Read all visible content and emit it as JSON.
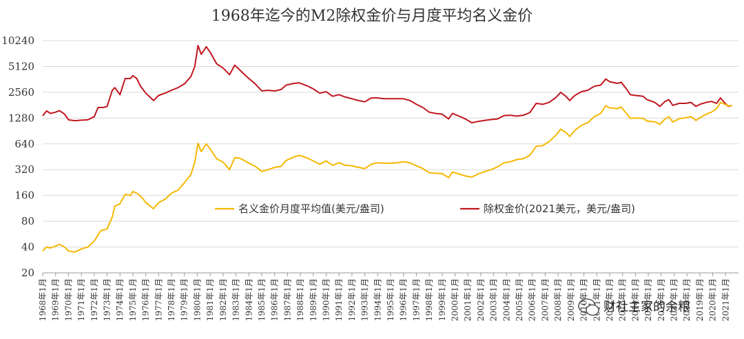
{
  "chart_data": {
    "type": "line",
    "title": "1968年迄今的M2除权金价与月度平均名义金价",
    "y_scale": "log2",
    "ylim": [
      20,
      10240
    ],
    "y_ticks": [
      20,
      40,
      80,
      160,
      320,
      640,
      1280,
      2560,
      5120,
      10240
    ],
    "y_tick_labels": [
      "20",
      "40",
      "80",
      "160",
      "320",
      "640",
      "1280",
      "2560",
      "5120",
      "10240"
    ],
    "x_ticks": [
      "1968年1月",
      "1969年1月",
      "1970年1月",
      "1971年1月",
      "1972年1月",
      "1973年1月",
      "1974年1月",
      "1975年1月",
      "1976年1月",
      "1977年1月",
      "1978年1月",
      "1979年1月",
      "1980年1月",
      "1981年1月",
      "1982年1月",
      "1983年1月",
      "1984年1月",
      "1985年1月",
      "1986年1月",
      "1987年1月",
      "1988年1月",
      "1989年1月",
      "1990年1月",
      "1991年1月",
      "1992年1月",
      "1993年1月",
      "1994年1月",
      "1995年1月",
      "1996年1月",
      "1997年1月",
      "1998年1月",
      "1999年1月",
      "2000年1月",
      "2001年1月",
      "2002年1月",
      "2003年1月",
      "2004年1月",
      "2005年1月",
      "2006年1月",
      "2007年1月",
      "2008年1月",
      "2009年1月",
      "2010年1月",
      "2011年1月",
      "2012年1月",
      "2013年1月",
      "2014年1月",
      "2015年1月",
      "2016年1月",
      "2017年1月",
      "2018年1月",
      "2019年1月",
      "2020年1月",
      "2021年1月"
    ],
    "grid": true,
    "legend_position": "center",
    "series": [
      {
        "name": "名义金价月度平均值(美元/盎司)",
        "color": "#f5b800",
        "points": [
          [
            1968.0,
            36
          ],
          [
            1968.3,
            40
          ],
          [
            1968.6,
            39
          ],
          [
            1969.0,
            41
          ],
          [
            1969.3,
            43
          ],
          [
            1969.7,
            40
          ],
          [
            1970.0,
            36
          ],
          [
            1970.5,
            35
          ],
          [
            1971.0,
            38
          ],
          [
            1971.5,
            40
          ],
          [
            1972.0,
            47
          ],
          [
            1972.5,
            62
          ],
          [
            1973.0,
            65
          ],
          [
            1973.4,
            90
          ],
          [
            1973.6,
            120
          ],
          [
            1974.0,
            128
          ],
          [
            1974.4,
            165
          ],
          [
            1974.8,
            160
          ],
          [
            1975.0,
            178
          ],
          [
            1975.4,
            167
          ],
          [
            1975.8,
            145
          ],
          [
            1976.0,
            132
          ],
          [
            1976.6,
            112
          ],
          [
            1977.0,
            132
          ],
          [
            1977.5,
            145
          ],
          [
            1978.0,
            170
          ],
          [
            1978.5,
            185
          ],
          [
            1979.0,
            225
          ],
          [
            1979.5,
            280
          ],
          [
            1979.8,
            390
          ],
          [
            1980.05,
            650
          ],
          [
            1980.3,
            520
          ],
          [
            1980.7,
            640
          ],
          [
            1981.0,
            560
          ],
          [
            1981.5,
            430
          ],
          [
            1982.0,
            390
          ],
          [
            1982.5,
            320
          ],
          [
            1982.9,
            440
          ],
          [
            1983.2,
            440
          ],
          [
            1983.5,
            420
          ],
          [
            1984.0,
            380
          ],
          [
            1984.5,
            350
          ],
          [
            1985.0,
            305
          ],
          [
            1985.5,
            320
          ],
          [
            1986.0,
            340
          ],
          [
            1986.5,
            350
          ],
          [
            1986.9,
            410
          ],
          [
            1987.5,
            450
          ],
          [
            1987.9,
            470
          ],
          [
            1988.5,
            440
          ],
          [
            1989.0,
            405
          ],
          [
            1989.5,
            370
          ],
          [
            1990.0,
            405
          ],
          [
            1990.5,
            360
          ],
          [
            1991.0,
            385
          ],
          [
            1991.5,
            360
          ],
          [
            1992.0,
            355
          ],
          [
            1992.5,
            340
          ],
          [
            1993.0,
            330
          ],
          [
            1993.5,
            370
          ],
          [
            1994.0,
            385
          ],
          [
            1994.5,
            380
          ],
          [
            1995.0,
            380
          ],
          [
            1995.5,
            385
          ],
          [
            1996.0,
            395
          ],
          [
            1996.5,
            385
          ],
          [
            1997.0,
            355
          ],
          [
            1997.5,
            330
          ],
          [
            1998.0,
            295
          ],
          [
            1998.5,
            290
          ],
          [
            1999.0,
            288
          ],
          [
            1999.5,
            258
          ],
          [
            1999.8,
            300
          ],
          [
            2000.3,
            285
          ],
          [
            2000.8,
            270
          ],
          [
            2001.3,
            262
          ],
          [
            2001.8,
            285
          ],
          [
            2002.3,
            305
          ],
          [
            2002.8,
            320
          ],
          [
            2003.3,
            345
          ],
          [
            2003.8,
            385
          ],
          [
            2004.3,
            395
          ],
          [
            2004.8,
            420
          ],
          [
            2005.3,
            430
          ],
          [
            2005.8,
            470
          ],
          [
            2006.3,
            600
          ],
          [
            2006.8,
            610
          ],
          [
            2007.3,
            680
          ],
          [
            2007.8,
            800
          ],
          [
            2008.2,
            950
          ],
          [
            2008.6,
            870
          ],
          [
            2008.9,
            780
          ],
          [
            2009.3,
            920
          ],
          [
            2009.8,
            1050
          ],
          [
            2010.3,
            1130
          ],
          [
            2010.8,
            1330
          ],
          [
            2011.3,
            1450
          ],
          [
            2011.7,
            1780
          ],
          [
            2012.0,
            1680
          ],
          [
            2012.6,
            1650
          ],
          [
            2012.9,
            1720
          ],
          [
            2013.3,
            1450
          ],
          [
            2013.6,
            1270
          ],
          [
            2014.0,
            1280
          ],
          [
            2014.6,
            1270
          ],
          [
            2014.9,
            1180
          ],
          [
            2015.5,
            1160
          ],
          [
            2015.9,
            1080
          ],
          [
            2016.3,
            1250
          ],
          [
            2016.6,
            1330
          ],
          [
            2016.9,
            1150
          ],
          [
            2017.4,
            1260
          ],
          [
            2017.9,
            1290
          ],
          [
            2018.3,
            1330
          ],
          [
            2018.7,
            1200
          ],
          [
            2019.0,
            1290
          ],
          [
            2019.5,
            1420
          ],
          [
            2019.9,
            1500
          ],
          [
            2020.3,
            1650
          ],
          [
            2020.6,
            1950
          ],
          [
            2020.9,
            1870
          ],
          [
            2021.2,
            1770
          ],
          [
            2021.5,
            1800
          ]
        ]
      },
      {
        "name": "除权金价(2021美元，美元/盎司)",
        "color": "#c0161f",
        "points": [
          [
            1968.0,
            1360
          ],
          [
            1968.3,
            1550
          ],
          [
            1968.6,
            1450
          ],
          [
            1969.0,
            1500
          ],
          [
            1969.3,
            1560
          ],
          [
            1969.7,
            1420
          ],
          [
            1970.0,
            1220
          ],
          [
            1970.5,
            1190
          ],
          [
            1971.0,
            1210
          ],
          [
            1971.5,
            1220
          ],
          [
            1972.0,
            1330
          ],
          [
            1972.3,
            1700
          ],
          [
            1972.7,
            1700
          ],
          [
            1973.0,
            1750
          ],
          [
            1973.4,
            2700
          ],
          [
            1973.6,
            2900
          ],
          [
            1974.0,
            2400
          ],
          [
            1974.4,
            3700
          ],
          [
            1974.8,
            3700
          ],
          [
            1975.0,
            4000
          ],
          [
            1975.3,
            3700
          ],
          [
            1975.6,
            3000
          ],
          [
            1976.0,
            2500
          ],
          [
            1976.6,
            2050
          ],
          [
            1977.0,
            2350
          ],
          [
            1977.5,
            2500
          ],
          [
            1978.0,
            2700
          ],
          [
            1978.5,
            2900
          ],
          [
            1979.0,
            3200
          ],
          [
            1979.5,
            3900
          ],
          [
            1979.8,
            5100
          ],
          [
            1980.05,
            9000
          ],
          [
            1980.3,
            7100
          ],
          [
            1980.7,
            8700
          ],
          [
            1981.0,
            7500
          ],
          [
            1981.5,
            5500
          ],
          [
            1982.0,
            4900
          ],
          [
            1982.5,
            4100
          ],
          [
            1982.9,
            5300
          ],
          [
            1983.2,
            4800
          ],
          [
            1983.6,
            4200
          ],
          [
            1984.0,
            3700
          ],
          [
            1984.5,
            3200
          ],
          [
            1985.0,
            2650
          ],
          [
            1985.5,
            2700
          ],
          [
            1986.0,
            2650
          ],
          [
            1986.5,
            2750
          ],
          [
            1986.9,
            3100
          ],
          [
            1987.5,
            3250
          ],
          [
            1987.9,
            3300
          ],
          [
            1988.5,
            3050
          ],
          [
            1989.0,
            2800
          ],
          [
            1989.5,
            2500
          ],
          [
            1990.0,
            2600
          ],
          [
            1990.5,
            2300
          ],
          [
            1991.0,
            2400
          ],
          [
            1991.5,
            2250
          ],
          [
            1992.0,
            2150
          ],
          [
            1992.5,
            2050
          ],
          [
            1993.0,
            1980
          ],
          [
            1993.5,
            2200
          ],
          [
            1994.0,
            2200
          ],
          [
            1994.5,
            2150
          ],
          [
            1995.0,
            2150
          ],
          [
            1995.5,
            2150
          ],
          [
            1996.0,
            2150
          ],
          [
            1996.5,
            2050
          ],
          [
            1997.0,
            1850
          ],
          [
            1997.5,
            1700
          ],
          [
            1998.0,
            1500
          ],
          [
            1998.5,
            1450
          ],
          [
            1999.0,
            1420
          ],
          [
            1999.5,
            1250
          ],
          [
            1999.8,
            1450
          ],
          [
            2000.3,
            1350
          ],
          [
            2000.8,
            1250
          ],
          [
            2001.3,
            1130
          ],
          [
            2001.8,
            1170
          ],
          [
            2002.3,
            1200
          ],
          [
            2002.8,
            1230
          ],
          [
            2003.3,
            1250
          ],
          [
            2003.8,
            1370
          ],
          [
            2004.3,
            1380
          ],
          [
            2004.8,
            1350
          ],
          [
            2005.3,
            1380
          ],
          [
            2005.8,
            1480
          ],
          [
            2006.3,
            1900
          ],
          [
            2006.8,
            1850
          ],
          [
            2007.3,
            1950
          ],
          [
            2007.8,
            2200
          ],
          [
            2008.2,
            2550
          ],
          [
            2008.6,
            2300
          ],
          [
            2008.9,
            2050
          ],
          [
            2009.3,
            2350
          ],
          [
            2009.8,
            2600
          ],
          [
            2010.3,
            2700
          ],
          [
            2010.8,
            3000
          ],
          [
            2011.3,
            3100
          ],
          [
            2011.7,
            3650
          ],
          [
            2012.0,
            3400
          ],
          [
            2012.6,
            3250
          ],
          [
            2012.9,
            3350
          ],
          [
            2013.3,
            2800
          ],
          [
            2013.6,
            2400
          ],
          [
            2014.0,
            2350
          ],
          [
            2014.6,
            2300
          ],
          [
            2014.9,
            2100
          ],
          [
            2015.5,
            1950
          ],
          [
            2015.9,
            1750
          ],
          [
            2016.3,
            2000
          ],
          [
            2016.6,
            2100
          ],
          [
            2016.9,
            1800
          ],
          [
            2017.4,
            1900
          ],
          [
            2017.9,
            1900
          ],
          [
            2018.3,
            1950
          ],
          [
            2018.7,
            1750
          ],
          [
            2019.0,
            1850
          ],
          [
            2019.5,
            1950
          ],
          [
            2019.9,
            2000
          ],
          [
            2020.3,
            1900
          ],
          [
            2020.6,
            2200
          ],
          [
            2020.9,
            1950
          ],
          [
            2021.2,
            1750
          ],
          [
            2021.5,
            1800
          ]
        ]
      }
    ]
  },
  "watermark": {
    "text": "财社主家的余粮",
    "icon": "wechat-bubble-icon"
  }
}
